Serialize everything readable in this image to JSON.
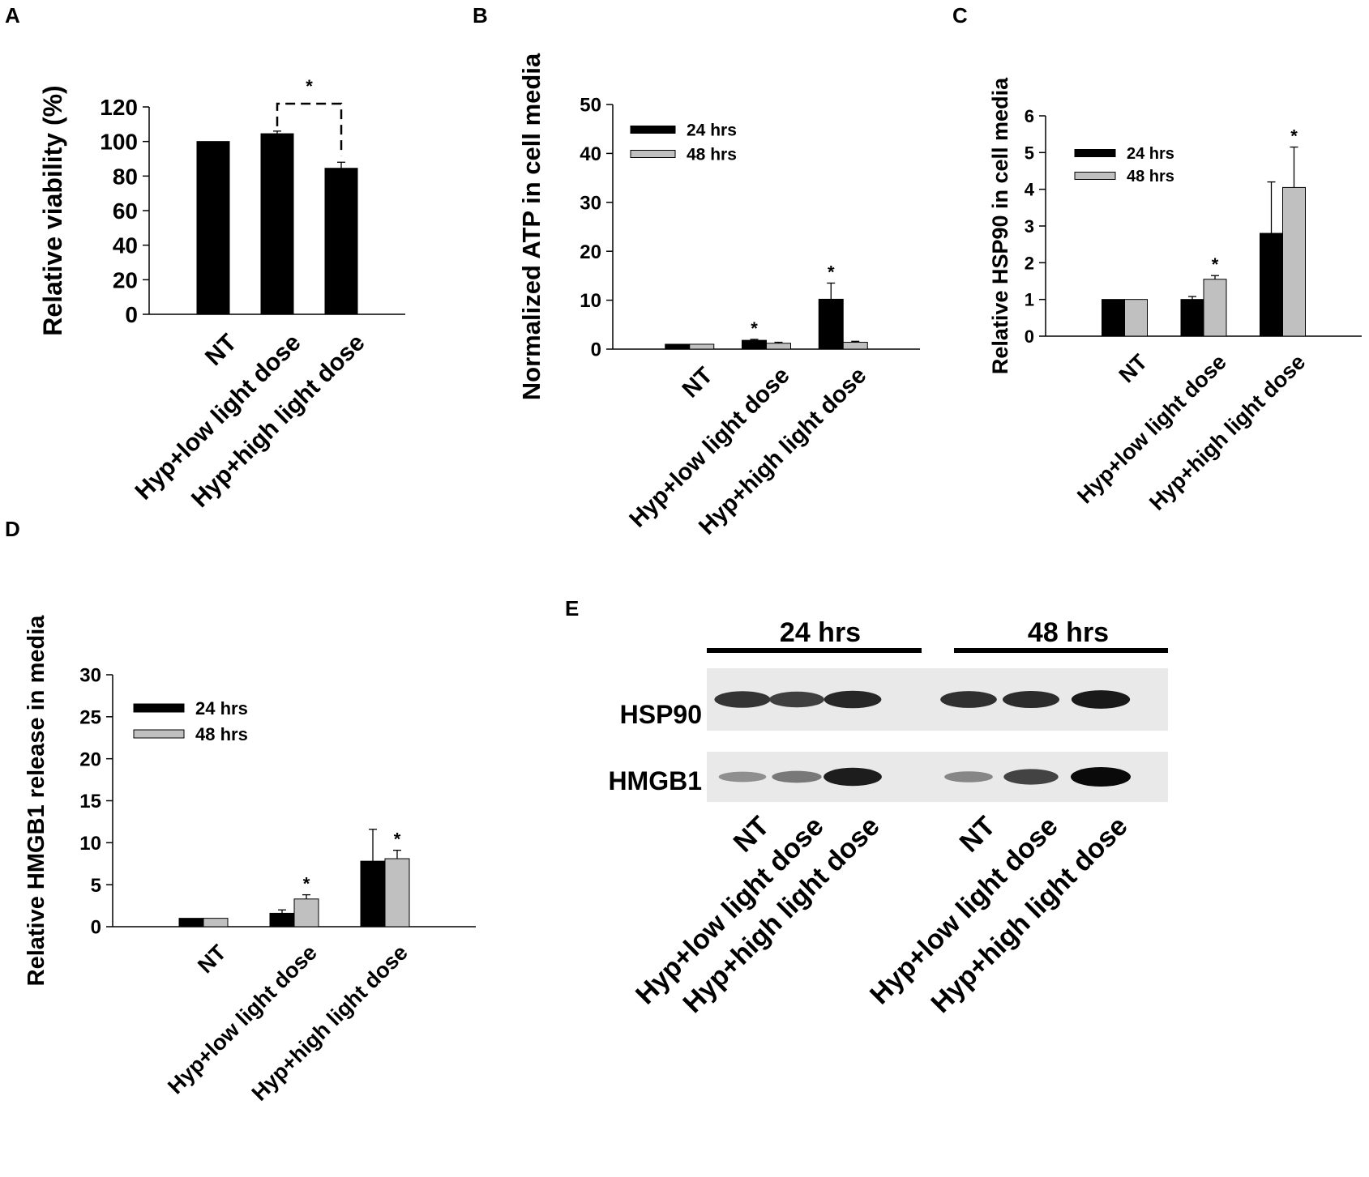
{
  "panels": {
    "A": "A",
    "B": "B",
    "C": "C",
    "D": "D",
    "E": "E"
  },
  "colors": {
    "black_bar": "#000000",
    "gray_bar": "#c0c0c0",
    "axis": "#000000"
  },
  "chart_data": [
    {
      "panel": "A",
      "type": "bar",
      "categories": [
        "NT",
        "Hyp+low light dose",
        "Hyp+high light dose"
      ],
      "series": [
        {
          "values": [
            100,
            104.5,
            84.5
          ],
          "errors": [
            0,
            1.5,
            3.5
          ],
          "color": "#000000"
        }
      ],
      "ylabel": "Relative viability (%)",
      "ylim": [
        0,
        120
      ],
      "yticks": [
        0,
        20,
        40,
        60,
        80,
        100,
        120
      ],
      "annotations": [
        {
          "text": "*",
          "type": "bracket",
          "between": [
            "Hyp+low light dose",
            "Hyp+high light dose"
          ]
        }
      ]
    },
    {
      "panel": "B",
      "type": "bar",
      "categories": [
        "NT",
        "Hyp+low light dose",
        "Hyp+high light dose"
      ],
      "series": [
        {
          "name": "24 hrs",
          "values": [
            1,
            1.8,
            10.2
          ],
          "errors": [
            0,
            0.2,
            3.3
          ],
          "color": "#000000"
        },
        {
          "name": "48 hrs",
          "values": [
            1,
            1.2,
            1.4
          ],
          "errors": [
            0,
            0.2,
            0.2
          ],
          "color": "#c0c0c0"
        }
      ],
      "ylabel": "Normalized ATP in cell media",
      "ylim": [
        0,
        50
      ],
      "yticks": [
        0,
        10,
        20,
        30,
        40,
        50
      ],
      "legend": "top-left",
      "annotations": [
        {
          "text": "*",
          "category": "Hyp+low light dose",
          "series": "24 hrs"
        },
        {
          "text": "*",
          "category": "Hyp+high light dose",
          "series": "24 hrs"
        }
      ]
    },
    {
      "panel": "C",
      "type": "bar",
      "categories": [
        "NT",
        "Hyp+low light dose",
        "Hyp+high light dose"
      ],
      "series": [
        {
          "name": "24 hrs",
          "values": [
            1,
            1,
            2.8
          ],
          "errors": [
            0,
            0.08,
            1.4
          ],
          "color": "#000000"
        },
        {
          "name": "48 hrs",
          "values": [
            1,
            1.55,
            4.05
          ],
          "errors": [
            0,
            0.1,
            1.1
          ],
          "color": "#c0c0c0"
        }
      ],
      "ylabel": "Relative HSP90 in cell media",
      "ylim": [
        0,
        6
      ],
      "yticks": [
        0,
        1,
        2,
        3,
        4,
        5,
        6
      ],
      "legend": "top-left",
      "annotations": [
        {
          "text": "*",
          "category": "Hyp+low light dose",
          "series": "48 hrs"
        },
        {
          "text": "*",
          "category": "Hyp+high light dose",
          "series": "48 hrs"
        }
      ]
    },
    {
      "panel": "D",
      "type": "bar",
      "categories": [
        "NT",
        "Hyp+low light dose",
        "Hyp+high light dose"
      ],
      "series": [
        {
          "name": "24 hrs",
          "values": [
            1,
            1.6,
            7.8
          ],
          "errors": [
            0,
            0.4,
            3.8
          ],
          "color": "#000000"
        },
        {
          "name": "48 hrs",
          "values": [
            1,
            3.3,
            8.1
          ],
          "errors": [
            0,
            0.5,
            1.0
          ],
          "color": "#c0c0c0"
        }
      ],
      "ylabel": "Relative HMGB1 release in media",
      "ylim": [
        0,
        30
      ],
      "yticks": [
        0,
        5,
        10,
        15,
        20,
        25,
        30
      ],
      "legend": "top-left",
      "annotations": [
        {
          "text": "*",
          "category": "Hyp+low light dose",
          "series": "48 hrs"
        },
        {
          "text": "*",
          "category": "Hyp+high light dose",
          "series": "48 hrs"
        }
      ]
    }
  ],
  "blot": {
    "groups": [
      "24 hrs",
      "48 hrs"
    ],
    "bands": [
      {
        "label": "HSP90",
        "intensities": [
          0.78,
          0.72,
          0.85,
          0.8,
          0.82,
          0.92
        ]
      },
      {
        "label": "HMGB1",
        "intensities": [
          0.3,
          0.42,
          0.9,
          0.35,
          0.7,
          1.0
        ]
      }
    ],
    "lanes": [
      "NT",
      "Hyp+low light dose",
      "Hyp+high light dose",
      "NT",
      "Hyp+low light dose",
      "Hyp+high light dose"
    ]
  }
}
